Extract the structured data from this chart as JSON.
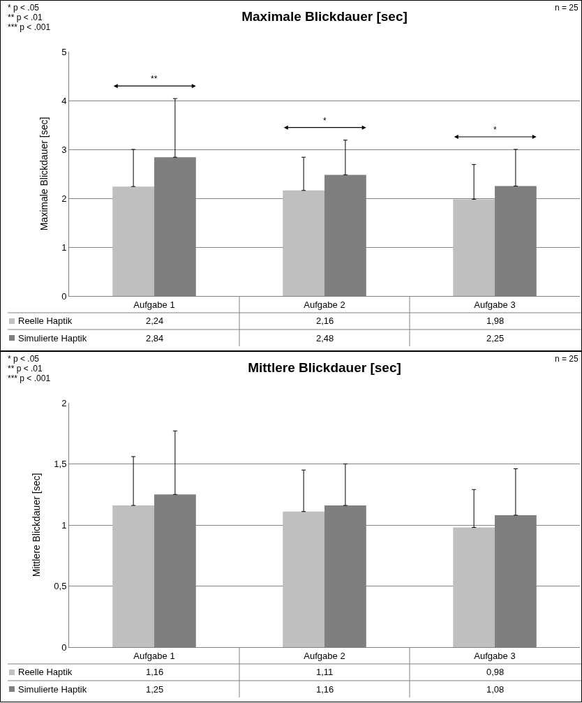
{
  "chart_data": [
    {
      "type": "bar",
      "title": "Maximale Blickdauer [sec]",
      "ylabel": "Maximale Blickdauer [sec]",
      "categories": [
        "Aufgabe 1",
        "Aufgabe 2",
        "Aufgabe 3"
      ],
      "series": [
        {
          "name": "Reelle Haptik",
          "color": "#bfbfbf",
          "values": [
            2.24,
            2.16,
            1.98
          ],
          "value_labels": [
            "2,24",
            "2,16",
            "1,98"
          ],
          "errors": [
            [
              2.24,
              3.0
            ],
            [
              2.16,
              2.84
            ],
            [
              1.98,
              2.69
            ]
          ]
        },
        {
          "name": "Simulierte Haptik",
          "color": "#7f7f7f",
          "values": [
            2.84,
            2.48,
            2.25
          ],
          "value_labels": [
            "2,84",
            "2,48",
            "2,25"
          ],
          "errors": [
            [
              2.84,
              4.04
            ],
            [
              2.48,
              3.19
            ],
            [
              2.25,
              3.0
            ]
          ]
        }
      ],
      "ylim": [
        0,
        5
      ],
      "yticks": [
        0,
        1,
        2,
        3,
        4,
        5
      ],
      "grid": "y",
      "legend": "bottom left",
      "annotations": [
        "* p < .05",
        "** p < .01",
        "*** p < .001",
        "n = 25",
        "**",
        "*",
        "*"
      ]
    },
    {
      "type": "bar",
      "title": "Mittlere Blickdauer [sec]",
      "ylabel": "Mittlere Blickdauer [sec]",
      "categories": [
        "Aufgabe 1",
        "Aufgabe 2",
        "Aufgabe 3"
      ],
      "series": [
        {
          "name": "Reelle Haptik",
          "color": "#bfbfbf",
          "values": [
            1.16,
            1.11,
            0.98
          ],
          "value_labels": [
            "1,16",
            "1,11",
            "0,98"
          ],
          "errors": [
            [
              1.16,
              1.56
            ],
            [
              1.11,
              1.45
            ],
            [
              0.98,
              1.29
            ]
          ]
        },
        {
          "name": "Simulierte Haptik",
          "color": "#7f7f7f",
          "values": [
            1.25,
            1.16,
            1.08
          ],
          "value_labels": [
            "1,25",
            "1,16",
            "1,08"
          ],
          "errors": [
            [
              1.25,
              1.77
            ],
            [
              1.16,
              1.5
            ],
            [
              1.08,
              1.46
            ]
          ]
        }
      ],
      "ylim": [
        0,
        2
      ],
      "yticks": [
        0,
        {
          "value": 0.5,
          "label": "0,5"
        },
        1,
        {
          "value": 1.5,
          "label": "1,5"
        },
        2
      ],
      "grid": "y",
      "legend": "bottom left",
      "annotations": [
        "* p < .05",
        "** p < .01",
        "*** p < .001",
        "n = 25"
      ]
    }
  ]
}
